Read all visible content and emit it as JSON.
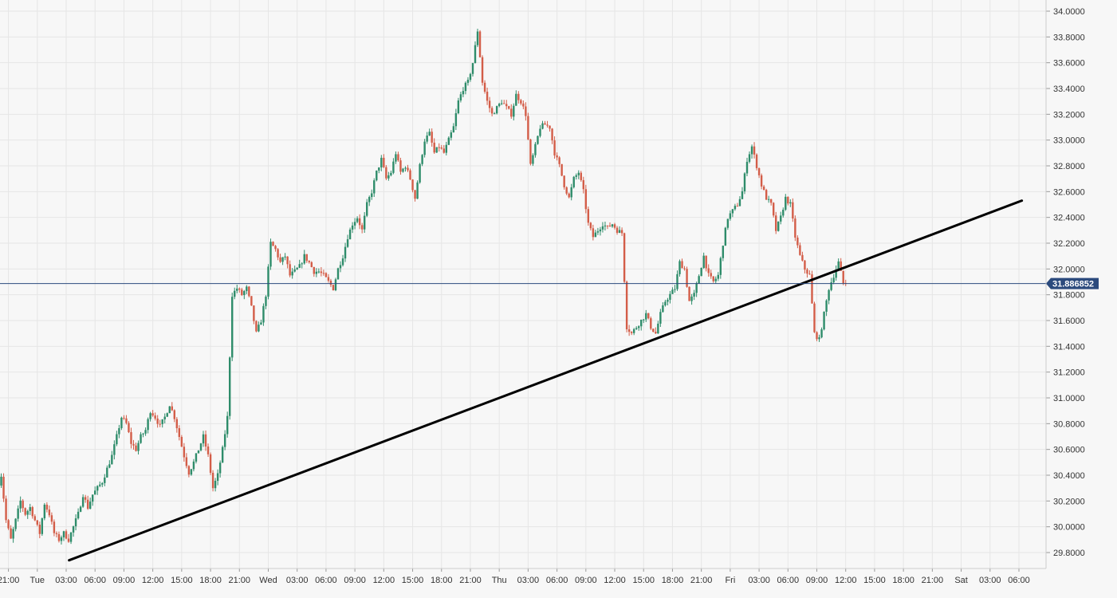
{
  "chart_data": {
    "type": "candlestick",
    "title": "",
    "xlabel": "",
    "ylabel": "",
    "ylim": [
      29.7,
      34.05
    ],
    "y_ticks": [
      "29.8000",
      "30.0000",
      "30.2000",
      "30.4000",
      "30.6000",
      "30.8000",
      "31.0000",
      "31.2000",
      "31.4000",
      "31.6000",
      "31.8000",
      "32.0000",
      "32.2000",
      "32.4000",
      "32.6000",
      "32.8000",
      "33.0000",
      "33.2000",
      "33.4000",
      "33.6000",
      "33.8000",
      "34.0000"
    ],
    "x_ticks": [
      "21:00",
      "Tue",
      "03:00",
      "06:00",
      "09:00",
      "12:00",
      "15:00",
      "18:00",
      "21:00",
      "Wed",
      "03:00",
      "06:00",
      "09:00",
      "12:00",
      "15:00",
      "18:00",
      "21:00",
      "Thu",
      "03:00",
      "06:00",
      "09:00",
      "12:00",
      "15:00",
      "18:00",
      "21:00",
      "Fri",
      "03:00",
      "06:00",
      "09:00",
      "12:00",
      "15:00",
      "18:00",
      "21:00",
      "Sat",
      "03:00",
      "06:00"
    ],
    "x_tick_hours": [
      -3,
      0,
      3,
      6,
      9,
      12,
      15,
      18,
      21,
      24,
      27,
      30,
      33,
      36,
      39,
      42,
      45,
      48,
      51,
      54,
      57,
      60,
      63,
      66,
      69,
      72,
      75,
      78,
      81,
      84,
      87,
      90,
      93,
      96,
      99,
      102
    ],
    "price_path": [
      [
        -4.0,
        30.28
      ],
      [
        -3.5,
        30.4
      ],
      [
        -3.0,
        30.05
      ],
      [
        -2.5,
        29.9
      ],
      [
        -2.0,
        30.05
      ],
      [
        -1.5,
        30.2
      ],
      [
        -1.0,
        30.1
      ],
      [
        -0.5,
        30.15
      ],
      [
        0.0,
        30.05
      ],
      [
        0.5,
        29.95
      ],
      [
        1.0,
        30.18
      ],
      [
        1.5,
        30.1
      ],
      [
        2.0,
        29.95
      ],
      [
        2.5,
        29.9
      ],
      [
        3.0,
        29.95
      ],
      [
        3.5,
        29.9
      ],
      [
        4.0,
        30.0
      ],
      [
        4.5,
        30.1
      ],
      [
        5.0,
        30.25
      ],
      [
        5.5,
        30.15
      ],
      [
        6.0,
        30.25
      ],
      [
        6.5,
        30.3
      ],
      [
        7.0,
        30.35
      ],
      [
        7.5,
        30.45
      ],
      [
        8.0,
        30.55
      ],
      [
        8.5,
        30.7
      ],
      [
        9.0,
        30.85
      ],
      [
        9.5,
        30.8
      ],
      [
        10.0,
        30.65
      ],
      [
        10.5,
        30.6
      ],
      [
        11.0,
        30.7
      ],
      [
        11.5,
        30.75
      ],
      [
        12.0,
        30.9
      ],
      [
        12.5,
        30.85
      ],
      [
        13.0,
        30.78
      ],
      [
        13.5,
        30.85
      ],
      [
        14.0,
        30.95
      ],
      [
        14.5,
        30.85
      ],
      [
        15.0,
        30.7
      ],
      [
        15.5,
        30.55
      ],
      [
        16.0,
        30.42
      ],
      [
        16.5,
        30.5
      ],
      [
        17.0,
        30.6
      ],
      [
        17.5,
        30.7
      ],
      [
        18.0,
        30.55
      ],
      [
        18.5,
        30.3
      ],
      [
        19.0,
        30.4
      ],
      [
        19.5,
        30.6
      ],
      [
        20.0,
        30.85
      ],
      [
        20.5,
        31.8
      ],
      [
        21.0,
        31.85
      ],
      [
        21.5,
        31.8
      ],
      [
        22.0,
        31.85
      ],
      [
        22.5,
        31.7
      ],
      [
        23.0,
        31.5
      ],
      [
        23.5,
        31.6
      ],
      [
        24.0,
        31.8
      ],
      [
        24.5,
        32.2
      ],
      [
        25.0,
        32.15
      ],
      [
        25.5,
        32.05
      ],
      [
        26.0,
        32.1
      ],
      [
        26.5,
        31.95
      ],
      [
        27.0,
        31.98
      ],
      [
        27.5,
        32.02
      ],
      [
        28.0,
        32.1
      ],
      [
        28.5,
        32.05
      ],
      [
        29.0,
        31.98
      ],
      [
        29.5,
        31.98
      ],
      [
        30.0,
        31.95
      ],
      [
        30.5,
        31.9
      ],
      [
        31.0,
        31.85
      ],
      [
        31.5,
        32.0
      ],
      [
        32.0,
        32.1
      ],
      [
        32.5,
        32.25
      ],
      [
        33.0,
        32.35
      ],
      [
        33.5,
        32.4
      ],
      [
        34.0,
        32.3
      ],
      [
        34.5,
        32.5
      ],
      [
        35.0,
        32.6
      ],
      [
        35.5,
        32.75
      ],
      [
        36.0,
        32.85
      ],
      [
        36.5,
        32.7
      ],
      [
        37.0,
        32.75
      ],
      [
        37.5,
        32.9
      ],
      [
        38.0,
        32.75
      ],
      [
        38.5,
        32.8
      ],
      [
        39.0,
        32.7
      ],
      [
        39.5,
        32.55
      ],
      [
        40.0,
        32.8
      ],
      [
        40.5,
        33.0
      ],
      [
        41.0,
        33.05
      ],
      [
        41.5,
        32.9
      ],
      [
        42.0,
        32.95
      ],
      [
        42.5,
        32.9
      ],
      [
        43.0,
        33.0
      ],
      [
        43.5,
        33.1
      ],
      [
        44.0,
        33.3
      ],
      [
        44.5,
        33.4
      ],
      [
        45.0,
        33.45
      ],
      [
        45.5,
        33.6
      ],
      [
        46.0,
        33.85
      ],
      [
        46.5,
        33.45
      ],
      [
        47.0,
        33.3
      ],
      [
        47.5,
        33.2
      ],
      [
        48.0,
        33.25
      ],
      [
        48.5,
        33.3
      ],
      [
        49.0,
        33.25
      ],
      [
        49.5,
        33.2
      ],
      [
        50.0,
        33.35
      ],
      [
        50.5,
        33.3
      ],
      [
        51.0,
        33.2
      ],
      [
        51.5,
        32.8
      ],
      [
        52.0,
        32.95
      ],
      [
        52.5,
        33.1
      ],
      [
        53.0,
        33.12
      ],
      [
        53.5,
        33.1
      ],
      [
        54.0,
        32.9
      ],
      [
        54.5,
        32.8
      ],
      [
        55.0,
        32.65
      ],
      [
        55.5,
        32.55
      ],
      [
        56.0,
        32.7
      ],
      [
        56.5,
        32.75
      ],
      [
        57.0,
        32.6
      ],
      [
        57.5,
        32.35
      ],
      [
        58.0,
        32.25
      ],
      [
        58.5,
        32.3
      ],
      [
        59.0,
        32.35
      ],
      [
        59.5,
        32.32
      ],
      [
        60.0,
        32.35
      ],
      [
        60.5,
        32.3
      ],
      [
        61.0,
        32.28
      ],
      [
        61.5,
        31.55
      ],
      [
        62.0,
        31.5
      ],
      [
        62.5,
        31.55
      ],
      [
        63.0,
        31.6
      ],
      [
        63.5,
        31.65
      ],
      [
        64.0,
        31.55
      ],
      [
        64.5,
        31.5
      ],
      [
        65.0,
        31.65
      ],
      [
        65.5,
        31.75
      ],
      [
        66.0,
        31.8
      ],
      [
        66.5,
        31.85
      ],
      [
        67.0,
        32.05
      ],
      [
        67.5,
        32.0
      ],
      [
        68.0,
        31.75
      ],
      [
        68.5,
        31.8
      ],
      [
        69.0,
        31.95
      ],
      [
        69.5,
        32.1
      ],
      [
        70.0,
        31.95
      ],
      [
        70.5,
        31.9
      ],
      [
        71.0,
        31.95
      ],
      [
        71.5,
        32.2
      ],
      [
        72.0,
        32.4
      ],
      [
        72.5,
        32.45
      ],
      [
        73.0,
        32.5
      ],
      [
        73.5,
        32.6
      ],
      [
        74.0,
        32.85
      ],
      [
        74.5,
        32.95
      ],
      [
        75.0,
        32.8
      ],
      [
        75.5,
        32.65
      ],
      [
        76.0,
        32.55
      ],
      [
        76.5,
        32.5
      ],
      [
        77.0,
        32.3
      ],
      [
        77.5,
        32.4
      ],
      [
        78.0,
        32.55
      ],
      [
        78.5,
        32.5
      ],
      [
        79.0,
        32.25
      ],
      [
        79.5,
        32.1
      ],
      [
        80.0,
        32.0
      ],
      [
        80.5,
        31.95
      ],
      [
        81.0,
        31.5
      ],
      [
        81.5,
        31.45
      ],
      [
        82.0,
        31.65
      ],
      [
        82.5,
        31.85
      ],
      [
        83.0,
        31.95
      ],
      [
        83.5,
        32.05
      ],
      [
        84.0,
        31.89
      ]
    ],
    "trendline": {
      "start": [
        3.3,
        29.74
      ],
      "end": [
        102.3,
        32.53
      ],
      "color": "#000000"
    },
    "current_price": {
      "value": 31.886852,
      "label": "31.886852",
      "line_color": "#2b4a7d",
      "label_bg": "#2b4a7d"
    },
    "colors": {
      "up": "#2e8c6a",
      "down": "#d35d48",
      "grid": "#e6e6e6",
      "text": "#333333",
      "axis": "#cccccc",
      "background": "#f7f7f7"
    },
    "grid": true
  }
}
